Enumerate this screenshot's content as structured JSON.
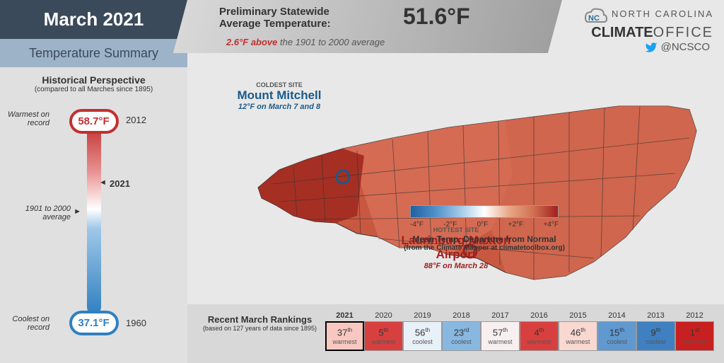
{
  "header": {
    "title": "March 2021",
    "subtitle": "Temperature Summary",
    "prelim_label1": "Preliminary Statewide",
    "prelim_label2": "Average Temperature:",
    "prelim_temp": "51.6°F",
    "anomaly_value": "2.6°F above",
    "anomaly_rest": " the 1901 to 2000 average",
    "org_line1": "NORTH CAROLINA",
    "org_bold1": "CLIMATE",
    "org_bold2": "OFFICE",
    "twitter": "@NCSCO"
  },
  "historical": {
    "title": "Historical Perspective",
    "subtitle": "(compared to all Marches since 1895)",
    "warmest_label": "Warmest on record",
    "warmest_temp": "58.7°F",
    "warmest_year": "2012",
    "coolest_label": "Coolest on record",
    "coolest_temp": "37.1°F",
    "coolest_year": "1960",
    "current_year": "2021",
    "avg_label": "1901 to 2000 average"
  },
  "map": {
    "coldest_tag": "COLDEST SITE",
    "coldest_name": "Mount Mitchell",
    "coldest_detail": "12°F on March 7 and 8",
    "hottest_tag": "HOTTEST SITE",
    "hottest_name": "Laurinburg-Maxton Airport",
    "hottest_detail": "88°F on March 28",
    "legend_title": "Mean Temp. Departure from Normal",
    "legend_sub": "(from the Climate Mapper at climatetoolbox.org)",
    "legend_ticks": [
      "-4°F",
      "-2°F",
      "0°F",
      "+2°F",
      "+4°F"
    ],
    "county_stroke": "#333333",
    "coldest_marker_color": "#1a5a8a",
    "hottest_marker_color": "#a02020"
  },
  "rankings": {
    "title": "Recent March Rankings",
    "subtitle": "(based on 127 years of data since 1895)",
    "items": [
      {
        "year": "2021",
        "rank": "37",
        "suf": "th",
        "type": "warmest",
        "bg": "#f8c8c0",
        "current": true
      },
      {
        "year": "2020",
        "rank": "5",
        "suf": "th",
        "type": "warmest",
        "bg": "#d84040",
        "current": false
      },
      {
        "year": "2019",
        "rank": "56",
        "suf": "th",
        "type": "coolest",
        "bg": "#e8f0f8",
        "current": false
      },
      {
        "year": "2018",
        "rank": "23",
        "suf": "rd",
        "type": "coolest",
        "bg": "#88b8e0",
        "current": false
      },
      {
        "year": "2017",
        "rank": "57",
        "suf": "th",
        "type": "warmest",
        "bg": "#f8f0f0",
        "current": false
      },
      {
        "year": "2016",
        "rank": "4",
        "suf": "th",
        "type": "warmest",
        "bg": "#d84040",
        "current": false
      },
      {
        "year": "2015",
        "rank": "46",
        "suf": "th",
        "type": "warmest",
        "bg": "#f8d8d0",
        "current": false
      },
      {
        "year": "2014",
        "rank": "15",
        "suf": "th",
        "type": "coolest",
        "bg": "#6098d0",
        "current": false
      },
      {
        "year": "2013",
        "rank": "9",
        "suf": "th",
        "type": "coolest",
        "bg": "#4080c0",
        "current": false
      },
      {
        "year": "2012",
        "rank": "1",
        "suf": "st",
        "type": "warmest",
        "bg": "#c82020",
        "current": false
      }
    ]
  }
}
